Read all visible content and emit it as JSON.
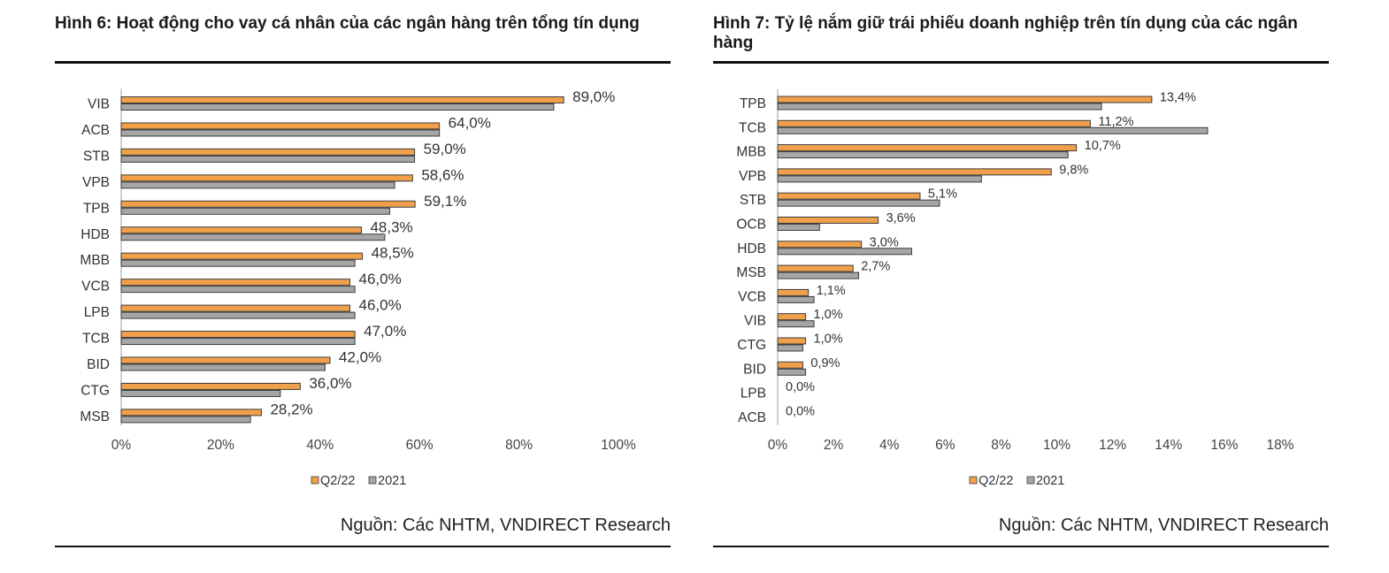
{
  "colors": {
    "q2": "#F0A04B",
    "y2021": "#A6A6A6",
    "stroke": "#3d3d3d",
    "axis": "#a0a0a0"
  },
  "chart_data": [
    {
      "type": "bar",
      "orientation": "horizontal",
      "title": "Hình 6: Hoạt động cho vay cá nhân của các ngân hàng trên tổng tín dụng",
      "source": "Nguồn: Các NHTM, VNDIRECT Research",
      "categories": [
        "VIB",
        "ACB",
        "STB",
        "VPB",
        "TPB",
        "HDB",
        "MBB",
        "VCB",
        "LPB",
        "TCB",
        "BID",
        "CTG",
        "MSB"
      ],
      "series": [
        {
          "name": "Q2/22",
          "values": [
            89.0,
            64.0,
            59.0,
            58.6,
            59.1,
            48.3,
            48.5,
            46.0,
            46.0,
            47.0,
            42.0,
            36.0,
            28.2
          ]
        },
        {
          "name": "2021",
          "values": [
            87,
            64,
            59,
            55,
            54,
            53,
            47,
            47,
            47,
            47,
            41,
            32,
            26
          ]
        }
      ],
      "data_labels": [
        "89,0%",
        "64,0%",
        "59,0%",
        "58,6%",
        "59,1%",
        "48,3%",
        "48,5%",
        "46,0%",
        "46,0%",
        "47,0%",
        "42,0%",
        "36,0%",
        "28,2%"
      ],
      "xlim": [
        0,
        100
      ],
      "x_ticks": [
        0,
        20,
        40,
        60,
        80,
        100
      ],
      "x_tick_labels": [
        "0%",
        "20%",
        "40%",
        "60%",
        "80%",
        "100%"
      ],
      "legend": {
        "position": "bottom",
        "entries": [
          "Q2/22",
          "2021"
        ]
      },
      "grid": false
    },
    {
      "type": "bar",
      "orientation": "horizontal",
      "title": "Hình 7: Tỷ lệ nắm giữ trái phiếu doanh nghiệp trên tín dụng của các ngân hàng",
      "source": "Nguồn: Các NHTM, VNDIRECT Research",
      "categories": [
        "TPB",
        "TCB",
        "MBB",
        "VPB",
        "STB",
        "OCB",
        "HDB",
        "MSB",
        "VCB",
        "VIB",
        "CTG",
        "BID",
        "LPB",
        "ACB"
      ],
      "series": [
        {
          "name": "Q2/22",
          "values": [
            13.4,
            11.2,
            10.7,
            9.8,
            5.1,
            3.6,
            3.0,
            2.7,
            1.1,
            1.0,
            1.0,
            0.9,
            0.0,
            0.0
          ]
        },
        {
          "name": "2021",
          "values": [
            11.6,
            15.4,
            10.4,
            7.3,
            5.8,
            1.5,
            4.8,
            2.9,
            1.3,
            1.3,
            0.9,
            1.0,
            0.0,
            0.0
          ]
        }
      ],
      "data_labels": [
        "13,4%",
        "11,2%",
        "10,7%",
        "9,8%",
        "5,1%",
        "3,6%",
        "3,0%",
        "2,7%",
        "1,1%",
        "1,0%",
        "1,0%",
        "0,9%",
        "0,0%",
        "0,0%"
      ],
      "xlim": [
        0,
        18
      ],
      "x_ticks": [
        0,
        2,
        4,
        6,
        8,
        10,
        12,
        14,
        16,
        18
      ],
      "x_tick_labels": [
        "0%",
        "2%",
        "4%",
        "6%",
        "8%",
        "10%",
        "12%",
        "14%",
        "16%",
        "18%"
      ],
      "legend": {
        "position": "bottom",
        "entries": [
          "Q2/22",
          "2021"
        ]
      },
      "grid": false
    }
  ]
}
